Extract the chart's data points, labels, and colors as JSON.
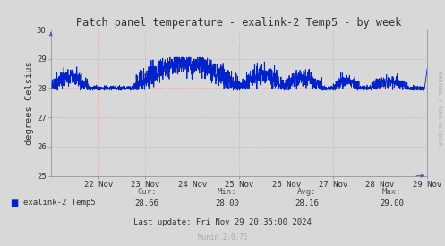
{
  "title": "Patch panel temperature - exalink-2 Temp5 - by week",
  "ylabel": "degrees Celsius",
  "ylim": [
    25,
    30
  ],
  "yticks": [
    25,
    26,
    27,
    28,
    29,
    30
  ],
  "bg_color": "#d8d8d8",
  "plot_bg_color": "#d8d8d8",
  "grid_color": "#ff8888",
  "line_color": "#0022cc",
  "line_width": 0.6,
  "legend_label": "exalink-2 Temp5",
  "legend_color": "#0022cc",
  "cur_val": "28.66",
  "min_val": "28.00",
  "avg_val": "28.16",
  "max_val": "29.00",
  "last_update": "Last update: Fri Nov 29 20:35:00 2024",
  "munin_version": "Munin 2.0.75",
  "watermark": "RRDTOOL / TOBI OETIKER",
  "x_tick_labels": [
    "22 Nov",
    "23 Nov",
    "24 Nov",
    "25 Nov",
    "26 Nov",
    "27 Nov",
    "28 Nov",
    "29 Nov"
  ],
  "base_temp": 28.0,
  "title_fontsize": 8.5,
  "tick_fontsize": 6.5,
  "ylabel_fontsize": 7.5,
  "stats_fontsize": 6.5
}
